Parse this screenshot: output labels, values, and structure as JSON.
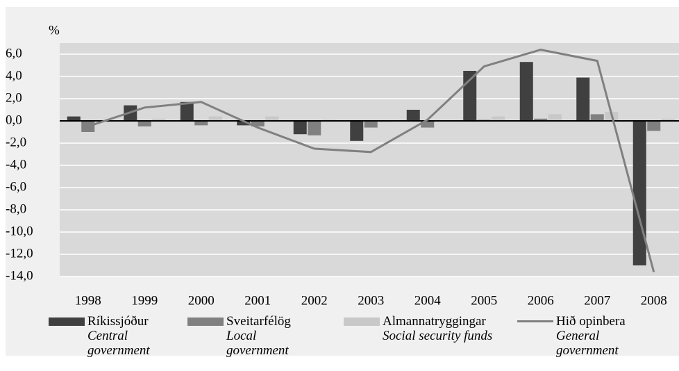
{
  "chart_data": {
    "type": "bar",
    "y_unit": "%",
    "categories": [
      "1998",
      "1999",
      "2000",
      "2001",
      "2002",
      "2003",
      "2004",
      "2005",
      "2006",
      "2007",
      "2008"
    ],
    "series": [
      {
        "name": "Ríkissjóður",
        "name_en": "Central government",
        "color": "#404040",
        "values": [
          0.4,
          1.4,
          1.7,
          -0.4,
          -1.2,
          -1.8,
          1.0,
          4.5,
          5.3,
          3.9,
          -13.0
        ]
      },
      {
        "name": "Sveitarfélög",
        "name_en": "Local government",
        "color": "#808080",
        "values": [
          -1.0,
          -0.5,
          -0.4,
          -0.5,
          -1.3,
          -0.6,
          -0.6,
          0.1,
          0.2,
          0.6,
          -0.9
        ]
      },
      {
        "name": "Almannatryggingar",
        "name_en": "Social security funds",
        "color": "#c8c8c8",
        "values": [
          0.0,
          0.2,
          0.4,
          0.4,
          0.1,
          -0.1,
          0.0,
          0.4,
          0.6,
          0.8,
          0.2
        ]
      },
      {
        "name": "Hið opinbera",
        "name_en": "General government",
        "color": "#808080",
        "type": "line",
        "values": [
          -0.5,
          1.2,
          1.7,
          -0.6,
          -2.5,
          -2.8,
          0.1,
          4.9,
          6.4,
          5.4,
          -13.6
        ]
      }
    ],
    "ylim": [
      -14,
      6
    ],
    "yticks": [
      {
        "value": 6,
        "label": "6,0"
      },
      {
        "value": 4,
        "label": "4,0"
      },
      {
        "value": 2,
        "label": "2,0"
      },
      {
        "value": 0,
        "label": "0,0"
      },
      {
        "value": -2,
        "label": "-2,0"
      },
      {
        "value": -4,
        "label": "-4,0"
      },
      {
        "value": -6,
        "label": "-6,0"
      },
      {
        "value": -8,
        "label": "-8,0"
      },
      {
        "value": -10,
        "label": "-10,0"
      },
      {
        "value": -12,
        "label": "-12,0"
      },
      {
        "value": -14,
        "label": "-14,0"
      }
    ],
    "grid": true
  }
}
